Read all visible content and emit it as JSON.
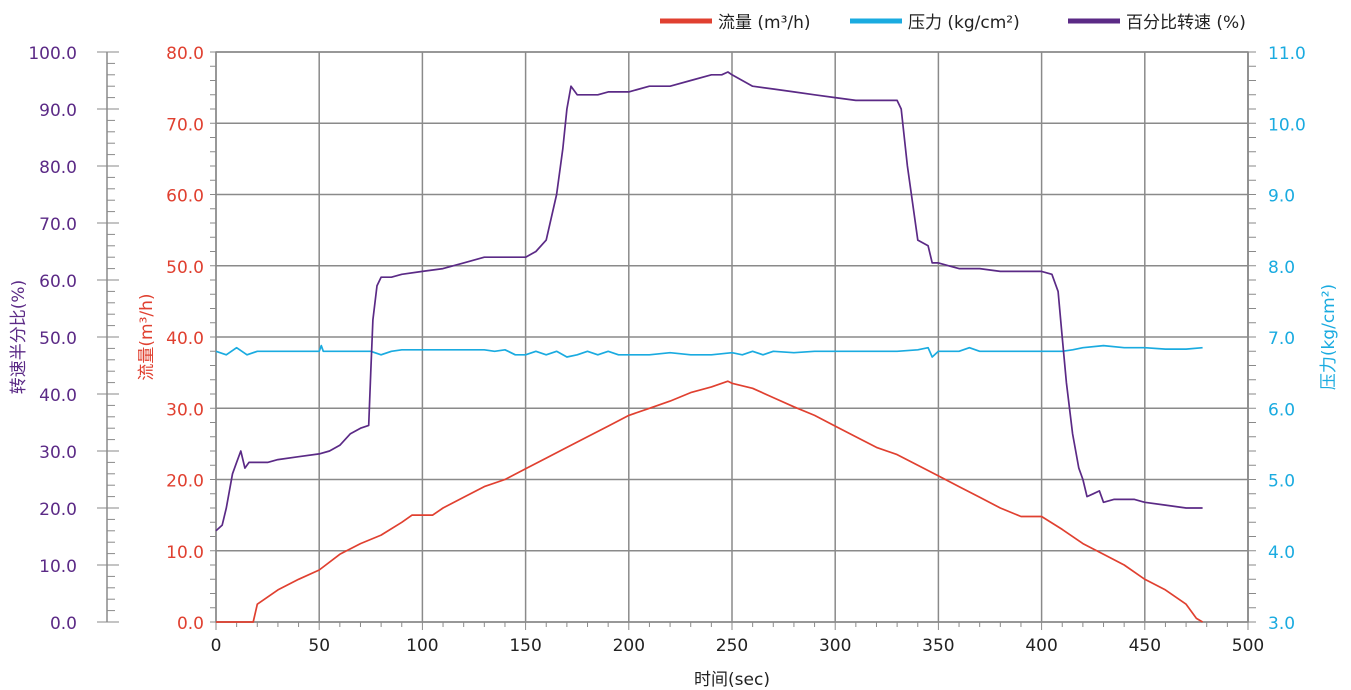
{
  "chart_data": {
    "type": "line",
    "xlabel": "时间(sec)",
    "x_ticks": [
      "0",
      "50",
      "100",
      "150",
      "200",
      "250",
      "300",
      "350",
      "400",
      "450",
      "500"
    ],
    "xlim": [
      0,
      500
    ],
    "grid": true,
    "legend_position": "top-right",
    "axes": {
      "far_left": {
        "label": "转速半分比(%)",
        "color": "#5b2a86",
        "ylim": [
          0,
          100
        ],
        "ticks": [
          "0.0",
          "10.0",
          "20.0",
          "30.0",
          "40.0",
          "50.0",
          "60.0",
          "70.0",
          "80.0",
          "90.0",
          "100.0"
        ]
      },
      "left": {
        "label": "流量(m³/h)",
        "color": "#e04030",
        "ylim": [
          0,
          80
        ],
        "ticks": [
          "0.0",
          "10.0",
          "20.0",
          "30.0",
          "40.0",
          "50.0",
          "60.0",
          "70.0",
          "80.0"
        ]
      },
      "right": {
        "label": "压力(kg/cm²)",
        "color": "#1aabe0",
        "ylim": [
          3,
          11
        ],
        "ticks": [
          "3.0",
          "4.0",
          "5.0",
          "6.0",
          "7.0",
          "8.0",
          "9.0",
          "10.0",
          "11.0"
        ]
      }
    },
    "series": [
      {
        "name": "流量 (m³/h)",
        "axis": "left",
        "color": "#e04030",
        "x": [
          0,
          18,
          20,
          25,
          30,
          40,
          50,
          60,
          70,
          80,
          90,
          95,
          100,
          105,
          110,
          120,
          130,
          140,
          150,
          160,
          170,
          180,
          190,
          200,
          210,
          220,
          230,
          240,
          248,
          250,
          260,
          270,
          280,
          290,
          300,
          310,
          320,
          330,
          340,
          350,
          360,
          370,
          380,
          390,
          395,
          400,
          410,
          420,
          430,
          440,
          450,
          460,
          470,
          475,
          478
        ],
        "y": [
          0,
          0,
          2.5,
          3.5,
          4.5,
          6,
          7.3,
          9.5,
          11,
          12.2,
          14,
          15,
          15,
          15,
          16,
          17.5,
          19,
          20,
          21.5,
          23,
          24.5,
          26,
          27.5,
          29,
          30,
          31,
          32.2,
          33,
          33.8,
          33.5,
          32.8,
          31.5,
          30.2,
          29,
          27.5,
          26,
          24.5,
          23.5,
          22,
          20.5,
          19,
          17.5,
          16,
          14.8,
          14.8,
          14.8,
          13,
          11,
          9.5,
          8,
          6,
          4.5,
          2.5,
          0.5,
          0
        ]
      },
      {
        "name": "压力 (kg/cm²)",
        "axis": "right",
        "color": "#1aabe0",
        "x": [
          0,
          5,
          10,
          15,
          20,
          30,
          40,
          50,
          51,
          52,
          60,
          70,
          75,
          80,
          85,
          90,
          95,
          100,
          110,
          120,
          130,
          135,
          140,
          145,
          150,
          155,
          160,
          165,
          170,
          175,
          180,
          185,
          190,
          195,
          200,
          210,
          220,
          230,
          240,
          250,
          255,
          260,
          265,
          270,
          280,
          290,
          300,
          310,
          320,
          330,
          340,
          345,
          347,
          350,
          355,
          360,
          365,
          370,
          380,
          390,
          400,
          410,
          415,
          420,
          430,
          440,
          450,
          460,
          470,
          478
        ],
        "y": [
          6.8,
          6.75,
          6.85,
          6.75,
          6.8,
          6.8,
          6.8,
          6.8,
          6.88,
          6.8,
          6.8,
          6.8,
          6.8,
          6.75,
          6.8,
          6.82,
          6.82,
          6.82,
          6.82,
          6.82,
          6.82,
          6.8,
          6.82,
          6.75,
          6.75,
          6.8,
          6.75,
          6.8,
          6.72,
          6.75,
          6.8,
          6.75,
          6.8,
          6.75,
          6.75,
          6.75,
          6.78,
          6.75,
          6.75,
          6.78,
          6.75,
          6.8,
          6.75,
          6.8,
          6.78,
          6.8,
          6.8,
          6.8,
          6.8,
          6.8,
          6.82,
          6.85,
          6.72,
          6.8,
          6.8,
          6.8,
          6.85,
          6.8,
          6.8,
          6.8,
          6.8,
          6.8,
          6.82,
          6.85,
          6.88,
          6.85,
          6.85,
          6.83,
          6.83,
          6.85
        ]
      },
      {
        "name": "百分比转速 (%)",
        "axis": "far_left",
        "color": "#5b2a86",
        "x": [
          0,
          3,
          5,
          8,
          10,
          12,
          14,
          16,
          20,
          25,
          30,
          40,
          50,
          55,
          60,
          65,
          70,
          74,
          75,
          76,
          78,
          80,
          82,
          85,
          90,
          100,
          110,
          120,
          130,
          140,
          150,
          155,
          160,
          165,
          168,
          170,
          172,
          175,
          180,
          185,
          190,
          200,
          210,
          220,
          230,
          240,
          245,
          248,
          250,
          255,
          260,
          270,
          280,
          290,
          300,
          310,
          320,
          330,
          332,
          335,
          340,
          345,
          347,
          350,
          355,
          360,
          370,
          380,
          390,
          400,
          405,
          408,
          410,
          412,
          415,
          418,
          420,
          422,
          425,
          428,
          430,
          435,
          440,
          445,
          450,
          460,
          470,
          478
        ],
        "y": [
          16,
          17,
          20,
          26,
          28,
          30,
          27,
          28,
          28,
          28,
          28.5,
          29,
          29.5,
          30,
          31,
          33,
          34,
          34.5,
          44,
          53,
          59,
          60.5,
          60.5,
          60.5,
          61,
          61.5,
          62,
          63,
          64,
          64,
          64,
          65,
          67,
          75,
          83,
          90,
          94,
          92.5,
          92.5,
          92.5,
          93,
          93,
          94,
          94,
          95,
          96,
          96,
          96.5,
          96,
          95,
          94,
          93.5,
          93,
          92.5,
          92,
          91.5,
          91.5,
          91.5,
          90,
          80,
          67,
          66,
          63,
          63,
          62.5,
          62,
          62,
          61.5,
          61.5,
          61.5,
          61,
          58,
          50,
          42,
          33,
          27,
          25,
          22,
          22.5,
          23,
          21,
          21.5,
          21.5,
          21.5,
          21,
          20.5,
          20,
          20
        ]
      }
    ]
  }
}
